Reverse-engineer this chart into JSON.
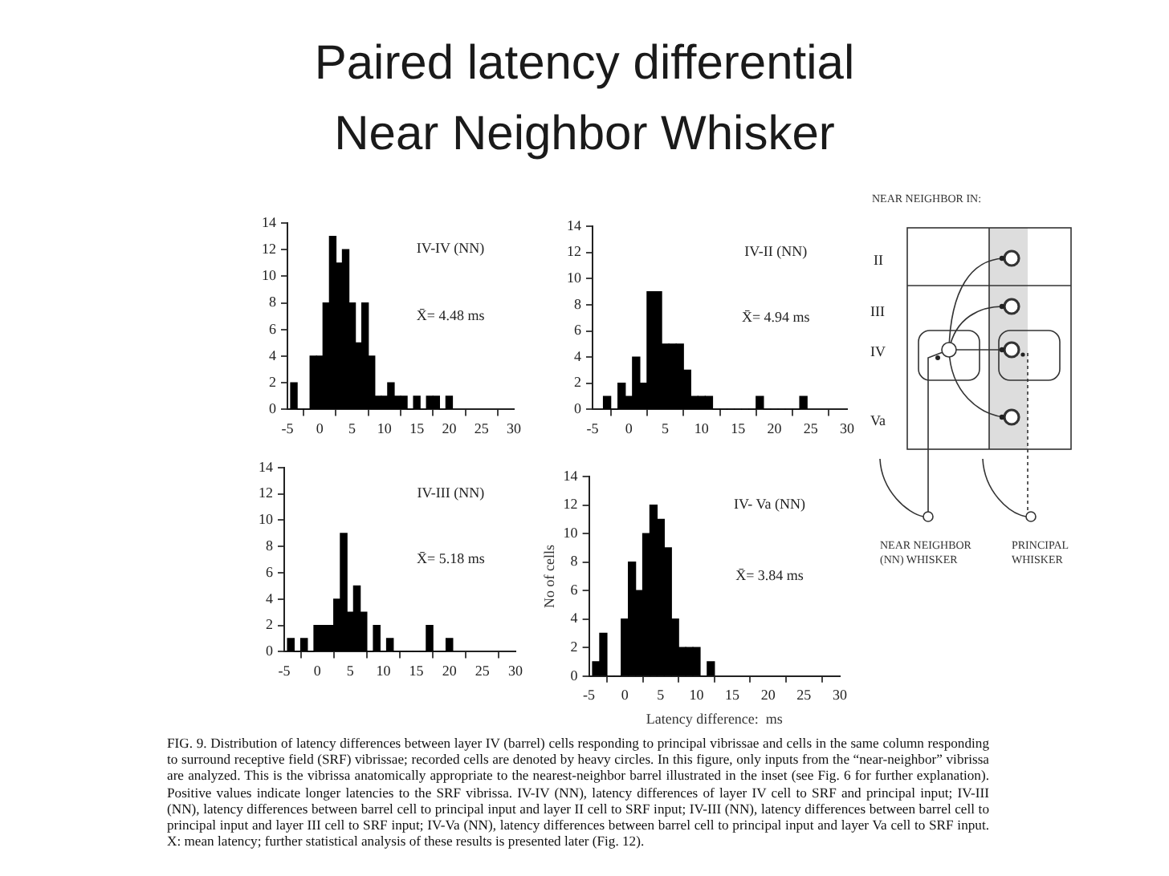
{
  "chart_data": [
    {
      "type": "other",
      "title": "Paired latency differential\nNear Neighbor Whisker",
      "annotations": [
        "FIG. 9. Distribution of latency differences between layer IV (barrel) cells responding to principal vibrissae and cells in the same column responding to surround receptive field (SRF) vibrissae; recorded cells are denoted by heavy circles. In this figure, only inputs from the “near-neighbor” vibrissa are analyzed. This is the vibrissa anatomically appropriate to the nearest-neighbor barrel illustrated in the inset (see Fig. 6 for further explanation). Positive values indicate longer latencies to the SRF vibrissa. IV-IV (NN), latency differences of layer IV cell to SRF and principal input; IV-III (NN), latency differences between barrel cell to principal input and layer II cell to SRF input; IV-III (NN), latency differences between barrel cell to principal input and layer III cell to SRF input; IV-Va (NN), latency differences between barrel cell to principal input and layer Va cell to SRF input. X: mean latency; further statistical analysis of these results is presented later (Fig. 12)."
      ]
    },
    {
      "type": "histogram",
      "title": "IV-IV (NN)",
      "annotations": [
        "X̄= 4.48 ms"
      ],
      "color": "#000000",
      "grid": false,
      "xlim": [
        -5,
        30
      ],
      "xticks": [
        -5,
        0,
        5,
        10,
        15,
        20,
        25,
        30
      ],
      "ylim": [
        0,
        14
      ],
      "yticks": [
        0,
        2,
        4,
        6,
        8,
        10,
        12,
        14
      ],
      "bins": [
        -4.5,
        -3.5,
        -2.5,
        -1.5,
        -0.5,
        0.5,
        1.5,
        2.5,
        3.5,
        4.5,
        5.5,
        6.5,
        7.5,
        8.5,
        9.5,
        10.5,
        11.5,
        12.5,
        13.5,
        14.5,
        15.5,
        16.5,
        17.5,
        18.5,
        19.5,
        20.5
      ],
      "values": [
        2,
        0,
        0,
        4,
        4,
        8,
        13,
        11,
        12,
        8,
        5,
        8,
        4,
        1,
        1,
        2,
        1,
        1,
        0,
        1,
        0,
        1,
        1,
        0,
        1
      ]
    },
    {
      "type": "histogram",
      "title": "IV-II (NN)",
      "annotations": [
        "X̄= 4.94 ms"
      ],
      "color": "#000000",
      "grid": false,
      "xlim": [
        -5,
        30
      ],
      "xticks": [
        -5,
        0,
        5,
        10,
        15,
        20,
        25,
        30
      ],
      "ylim": [
        0,
        14
      ],
      "yticks": [
        0,
        2,
        4,
        6,
        8,
        10,
        12,
        14
      ],
      "bins": [
        -3.5,
        -2.5,
        -1.5,
        -0.5,
        0.5,
        1.5,
        2.5,
        3.5,
        4.5,
        5.5,
        6.5,
        7.5,
        8.5,
        9.5,
        10.5,
        11.5,
        12.5,
        13.5,
        14.5,
        15.5,
        16.5,
        17.5,
        18.5,
        19.5,
        20.5,
        21.5,
        22.5,
        23.5,
        24.5
      ],
      "values": [
        1,
        0,
        2,
        1,
        4,
        2,
        9,
        9,
        5,
        5,
        5,
        3,
        1,
        1,
        1,
        0,
        0,
        0,
        0,
        0,
        0,
        1,
        0,
        0,
        0,
        0,
        0,
        1
      ]
    },
    {
      "type": "histogram",
      "title": "IV-III (NN)",
      "annotations": [
        "X̄= 5.18 ms"
      ],
      "color": "#000000",
      "grid": false,
      "xlim": [
        -5,
        30
      ],
      "xticks": [
        -5,
        0,
        5,
        10,
        15,
        20,
        25,
        30
      ],
      "ylim": [
        0,
        14
      ],
      "yticks": [
        0,
        2,
        4,
        6,
        8,
        10,
        12,
        14
      ],
      "bins": [
        -4.5,
        -3.5,
        -2.5,
        -1.5,
        -0.5,
        0.5,
        1.5,
        2.5,
        3.5,
        4.5,
        5.5,
        6.5,
        7.5,
        8.5,
        9.5,
        10.5,
        11.5,
        12.5,
        13.5,
        14.5,
        15.5,
        16.5,
        17.5,
        18.5,
        19.5,
        20.5
      ],
      "values": [
        1,
        0,
        1,
        0,
        2,
        2,
        2,
        4,
        9,
        3,
        5,
        3,
        0,
        2,
        0,
        1,
        0,
        0,
        0,
        0,
        0,
        2,
        0,
        0,
        1
      ]
    },
    {
      "type": "histogram",
      "title": "IV- Va (NN)",
      "annotations": [
        "X̄= 3.84 ms"
      ],
      "xlabel": "Latency difference:  ms",
      "ylabel": "No of cells",
      "color": "#000000",
      "grid": false,
      "xlim": [
        -5,
        30
      ],
      "xticks": [
        -5,
        0,
        5,
        10,
        15,
        20,
        25,
        30
      ],
      "ylim": [
        0,
        14
      ],
      "yticks": [
        0,
        2,
        4,
        6,
        8,
        10,
        12,
        14
      ],
      "bins": [
        -4.5,
        -3.5,
        -2.5,
        -1.5,
        -0.5,
        0.5,
        1.5,
        2.5,
        3.5,
        4.5,
        5.5,
        6.5,
        7.5,
        8.5,
        9.5,
        10.5,
        11.5,
        12.5
      ],
      "values": [
        1,
        3,
        0,
        0,
        4,
        8,
        6,
        10,
        12,
        11,
        9,
        4,
        2,
        2,
        2,
        0,
        1
      ]
    },
    {
      "type": "other",
      "annotations": [
        "NEAR NEIGHBOR IN:",
        "II",
        "III",
        "IV",
        "Va",
        "NEAR NEIGHBOR (NN) WHISKER",
        "PRINCIPAL WHISKER"
      ]
    }
  ]
}
